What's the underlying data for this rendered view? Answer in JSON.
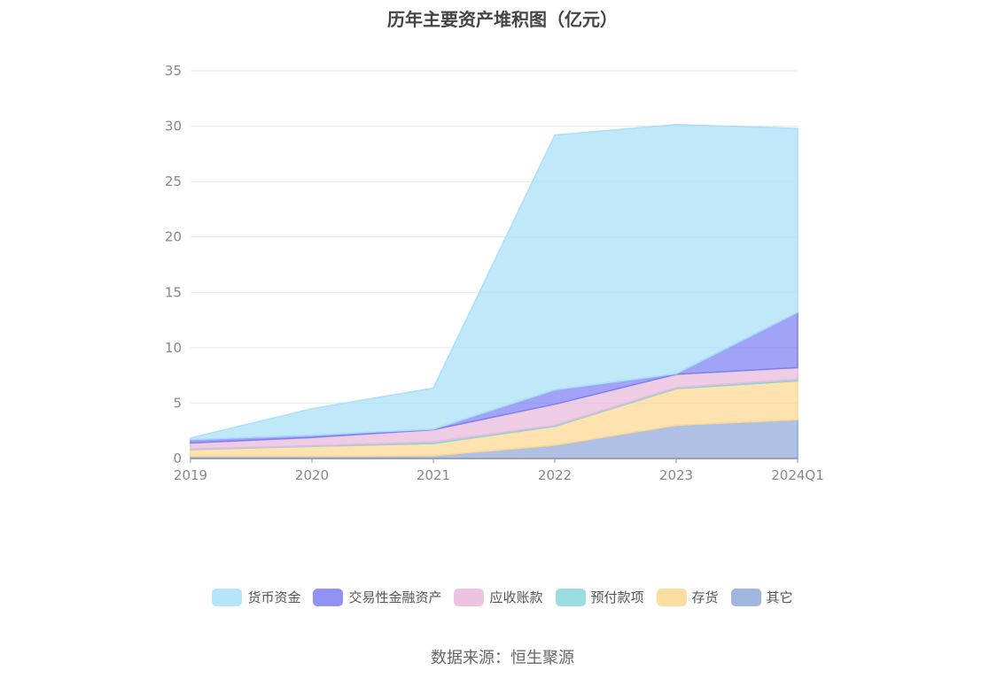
{
  "chart_data": {
    "type": "area",
    "stacked": true,
    "title": "历年主要资产堆积图（亿元）",
    "categories": [
      "2019",
      "2020",
      "2021",
      "2022",
      "2023",
      "2024Q1"
    ],
    "ylim": [
      0,
      35
    ],
    "yticks": [
      0,
      5,
      10,
      15,
      20,
      25,
      30,
      35
    ],
    "grid": true,
    "legend_position": "bottom",
    "series": [
      {
        "name": "其它",
        "color": "#8fa9d9",
        "values": [
          0.2,
          0.2,
          0.25,
          1.2,
          3.0,
          3.5
        ]
      },
      {
        "name": "存货",
        "color": "#fdd891",
        "values": [
          0.6,
          0.9,
          1.1,
          1.7,
          3.3,
          3.5
        ]
      },
      {
        "name": "预付款项",
        "color": "#8ad6d8",
        "values": [
          0.05,
          0.05,
          0.15,
          0.1,
          0.1,
          0.15
        ]
      },
      {
        "name": "应收账款",
        "color": "#e9b9dc",
        "values": [
          0.55,
          0.75,
          1.1,
          1.9,
          1.2,
          1.05
        ]
      },
      {
        "name": "交易性金融资产",
        "color": "#7c7ff3",
        "values": [
          0.3,
          0.2,
          0.05,
          1.3,
          0.05,
          5.0
        ]
      },
      {
        "name": "货币资金",
        "color": "#a9dff7",
        "values": [
          0.15,
          2.4,
          3.7,
          23.0,
          22.5,
          16.6
        ]
      }
    ],
    "legend_order": [
      "货币资金",
      "交易性金融资产",
      "应收账款",
      "预付款项",
      "存货",
      "其它"
    ]
  },
  "source": "数据来源：恒生聚源"
}
